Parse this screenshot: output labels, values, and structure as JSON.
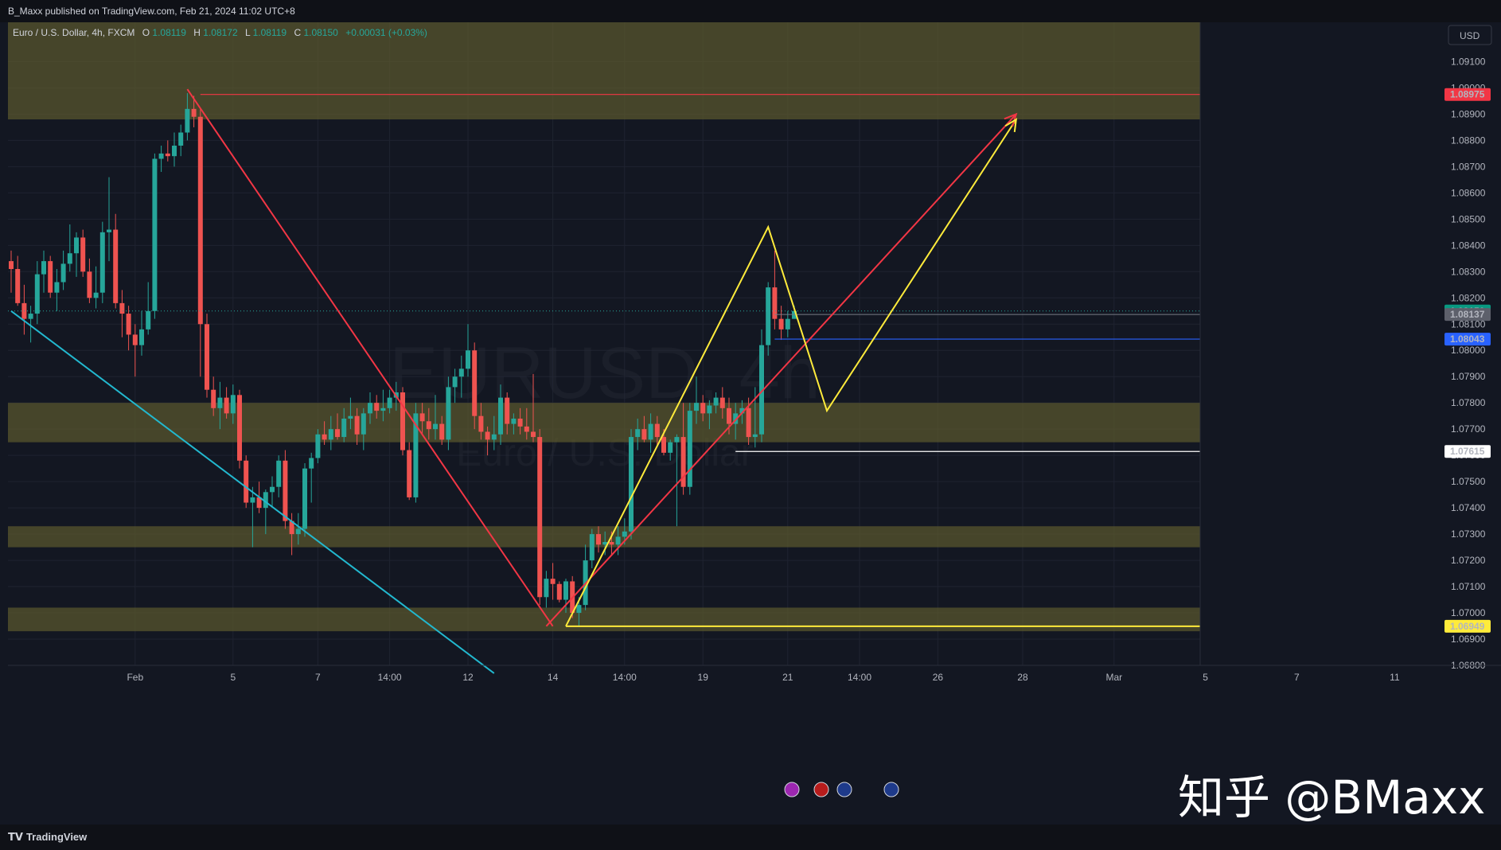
{
  "publisher": "B_Maxx published on TradingView.com, Feb 21, 2024 11:02 UTC+8",
  "brand": "TradingView",
  "watermark": "知乎 @BMaxx",
  "colors": {
    "background": "#131722",
    "zone_fill": "#5c5a2e",
    "bull": "#26a69a",
    "bear": "#ef5350",
    "red_line": "#f23645",
    "yellow_line": "#ffeb3b",
    "cyan_line": "#22b8cf",
    "blue_label": "#2962ff",
    "grid": "#1f2330"
  },
  "icons": [
    "lightning-icon",
    "us-flag-icon",
    "eu-flag-icon",
    "eu-flag-icon"
  ],
  "chart_data": {
    "type": "candlestick",
    "symbol": "EURUSD",
    "interval": "4h",
    "exchange": "FXCM",
    "legend": {
      "name": "Euro / U.S. Dollar, 4h, FXCM",
      "open_label": "O",
      "open": "1.08119",
      "high_label": "H",
      "high": "1.08172",
      "low_label": "L",
      "low": "1.08119",
      "close_label": "C",
      "close": "1.08150",
      "change": "+0.00031 (+0.03%)"
    },
    "background_watermark": {
      "symbol_line": "EURUSD, 4h",
      "name_line": "Euro / U.S. Dollar"
    },
    "currency": "USD",
    "y_range": [
      1.068,
      1.0925
    ],
    "y_ticks": [
      "1.09100",
      "1.09000",
      "1.08900",
      "1.08800",
      "1.08700",
      "1.08600",
      "1.08500",
      "1.08400",
      "1.08300",
      "1.08200",
      "1.08100",
      "1.08000",
      "1.07900",
      "1.07800",
      "1.07700",
      "1.07600",
      "1.07500",
      "1.07400",
      "1.07300",
      "1.07200",
      "1.07100",
      "1.07000",
      "1.06900",
      "1.06800"
    ],
    "x_ticks": [
      {
        "label": "Feb",
        "bar": 19
      },
      {
        "label": "5",
        "bar": 34
      },
      {
        "label": "7",
        "bar": 47
      },
      {
        "label": "14:00",
        "bar": 58
      },
      {
        "label": "12",
        "bar": 70
      },
      {
        "label": "14",
        "bar": 83
      },
      {
        "label": "14:00",
        "bar": 94
      },
      {
        "label": "19",
        "bar": 106
      },
      {
        "label": "21",
        "bar": 119
      },
      {
        "label": "14:00",
        "bar": 130
      },
      {
        "label": "26",
        "bar": 142
      },
      {
        "label": "28",
        "bar": 155
      },
      {
        "label": "Mar",
        "bar": 169
      },
      {
        "label": "5",
        "bar": 183
      },
      {
        "label": "7",
        "bar": 197
      },
      {
        "label": "11",
        "bar": 212
      }
    ],
    "price_labels": [
      {
        "value": "1.08975",
        "price": 1.08975,
        "color": "#f23645"
      },
      {
        "value": "1.08150",
        "price": 1.0815,
        "color": "#089981"
      },
      {
        "value": "1.08137",
        "price": 1.08137,
        "color": "#5d606b"
      },
      {
        "value": "1.08043",
        "price": 1.08043,
        "color": "#2962ff"
      },
      {
        "value": "1.07615",
        "price": 1.07615,
        "color": "#ffffff"
      },
      {
        "value": "1.06949",
        "price": 1.06949,
        "color": "#ffeb3b"
      }
    ],
    "zones": [
      {
        "top": 1.0925,
        "bottom": 1.0888
      },
      {
        "top": 1.078,
        "bottom": 1.0765
      },
      {
        "top": 1.0733,
        "bottom": 1.0725
      },
      {
        "top": 1.0702,
        "bottom": 1.0693
      }
    ],
    "horizontal_lines": [
      {
        "price": 1.08975,
        "from_bar": 29,
        "color": "#f23645"
      },
      {
        "price": 1.08043,
        "from_bar": 117,
        "color": "#2962ff"
      },
      {
        "price": 1.07615,
        "from_bar": 111,
        "color": "#ffffff"
      },
      {
        "price": 1.06949,
        "from_bar": 85,
        "color": "#ffeb3b"
      }
    ],
    "drawings": [
      {
        "color": "#22b8cf",
        "points": [
          [
            0,
            1.0815
          ],
          [
            74,
            1.0677
          ]
        ]
      },
      {
        "color": "#f23645",
        "points": [
          [
            27,
            1.08995
          ],
          [
            83,
            1.06949
          ]
        ]
      },
      {
        "color": "#f23645",
        "points": [
          [
            82,
            1.06949
          ],
          [
            154,
            1.089
          ]
        ]
      },
      {
        "color": "#ffeb3b",
        "points": [
          [
            85,
            1.06949
          ],
          [
            116,
            1.0847
          ],
          [
            125,
            1.0777
          ],
          [
            154,
            1.0888
          ]
        ]
      }
    ],
    "candles_ohlc": [
      [
        1.0834,
        1.0838,
        1.0822,
        1.0831
      ],
      [
        1.0831,
        1.0836,
        1.0817,
        1.0818
      ],
      [
        1.0818,
        1.0825,
        1.0806,
        1.0812
      ],
      [
        1.0812,
        1.0817,
        1.0803,
        1.0814
      ],
      [
        1.0814,
        1.0834,
        1.081,
        1.0829
      ],
      [
        1.0829,
        1.0838,
        1.0822,
        1.0834
      ],
      [
        1.0834,
        1.0836,
        1.082,
        1.0822
      ],
      [
        1.0822,
        1.0831,
        1.0815,
        1.0826
      ],
      [
        1.0826,
        1.0838,
        1.0823,
        1.0833
      ],
      [
        1.0833,
        1.0848,
        1.083,
        1.0837
      ],
      [
        1.0837,
        1.0845,
        1.0828,
        1.0843
      ],
      [
        1.0843,
        1.0846,
        1.0828,
        1.083
      ],
      [
        1.083,
        1.0835,
        1.0818,
        1.082
      ],
      [
        1.082,
        1.0832,
        1.0816,
        1.0822
      ],
      [
        1.0822,
        1.0849,
        1.0818,
        1.0845
      ],
      [
        1.0845,
        1.0866,
        1.0834,
        1.0846
      ],
      [
        1.0846,
        1.0852,
        1.0816,
        1.0818
      ],
      [
        1.0818,
        1.0823,
        1.0805,
        1.0814
      ],
      [
        1.0814,
        1.0817,
        1.08,
        1.0806
      ],
      [
        1.0806,
        1.081,
        1.079,
        1.0802
      ],
      [
        1.0802,
        1.0815,
        1.0798,
        1.0808
      ],
      [
        1.0808,
        1.0826,
        1.0806,
        1.0815
      ],
      [
        1.0815,
        1.0875,
        1.0812,
        1.0873
      ],
      [
        1.0873,
        1.0878,
        1.0868,
        1.0875
      ],
      [
        1.0875,
        1.088,
        1.0872,
        1.0874
      ],
      [
        1.0874,
        1.0883,
        1.087,
        1.0878
      ],
      [
        1.0878,
        1.0886,
        1.0874,
        1.0883
      ],
      [
        1.0883,
        1.0898,
        1.088,
        1.0892
      ],
      [
        1.0892,
        1.0897,
        1.0885,
        1.0889
      ],
      [
        1.0889,
        1.0892,
        1.079,
        1.081
      ],
      [
        1.081,
        1.0814,
        1.0782,
        1.0785
      ],
      [
        1.0785,
        1.079,
        1.0775,
        1.0778
      ],
      [
        1.0778,
        1.0788,
        1.077,
        1.0782
      ],
      [
        1.0782,
        1.0786,
        1.0774,
        1.0776
      ],
      [
        1.0776,
        1.0787,
        1.0772,
        1.0783
      ],
      [
        1.0783,
        1.0785,
        1.0755,
        1.0758
      ],
      [
        1.0758,
        1.076,
        1.074,
        1.0742
      ],
      [
        1.0742,
        1.0748,
        1.0725,
        1.0744
      ],
      [
        1.0744,
        1.075,
        1.0738,
        1.074
      ],
      [
        1.074,
        1.0747,
        1.073,
        1.0746
      ],
      [
        1.0746,
        1.0752,
        1.074,
        1.0748
      ],
      [
        1.0748,
        1.076,
        1.0744,
        1.0758
      ],
      [
        1.0758,
        1.0762,
        1.0732,
        1.0735
      ],
      [
        1.0735,
        1.0738,
        1.0722,
        1.073
      ],
      [
        1.073,
        1.0738,
        1.0726,
        1.0732
      ],
      [
        1.0732,
        1.0757,
        1.0729,
        1.0755
      ],
      [
        1.0755,
        1.0761,
        1.0742,
        1.0759
      ],
      [
        1.0759,
        1.077,
        1.0757,
        1.0768
      ],
      [
        1.0768,
        1.0773,
        1.0764,
        1.0766
      ],
      [
        1.0766,
        1.0775,
        1.0762,
        1.077
      ],
      [
        1.077,
        1.0776,
        1.0766,
        1.0767
      ],
      [
        1.0767,
        1.0778,
        1.0765,
        1.0774
      ],
      [
        1.0774,
        1.0782,
        1.077,
        1.0775
      ],
      [
        1.0775,
        1.0778,
        1.0764,
        1.0768
      ],
      [
        1.0768,
        1.0778,
        1.0762,
        1.0776
      ],
      [
        1.0776,
        1.0784,
        1.0772,
        1.078
      ],
      [
        1.078,
        1.0783,
        1.0774,
        1.0777
      ],
      [
        1.0777,
        1.0785,
        1.0773,
        1.0778
      ],
      [
        1.0778,
        1.0785,
        1.0776,
        1.0782
      ],
      [
        1.0782,
        1.0788,
        1.0777,
        1.0784
      ],
      [
        1.0784,
        1.0786,
        1.076,
        1.0762
      ],
      [
        1.0762,
        1.0765,
        1.0743,
        1.0744
      ],
      [
        1.0744,
        1.078,
        1.0742,
        1.0776
      ],
      [
        1.0776,
        1.078,
        1.0768,
        1.0773
      ],
      [
        1.0773,
        1.0778,
        1.0766,
        1.077
      ],
      [
        1.077,
        1.0783,
        1.0766,
        1.0772
      ],
      [
        1.0772,
        1.0775,
        1.0764,
        1.0766
      ],
      [
        1.0766,
        1.079,
        1.0762,
        1.0786
      ],
      [
        1.0786,
        1.0793,
        1.078,
        1.079
      ],
      [
        1.079,
        1.0798,
        1.0782,
        1.0793
      ],
      [
        1.0793,
        1.081,
        1.079,
        1.08
      ],
      [
        1.08,
        1.0803,
        1.077,
        1.0775
      ],
      [
        1.0775,
        1.078,
        1.0766,
        1.0769
      ],
      [
        1.0769,
        1.0771,
        1.076,
        1.0766
      ],
      [
        1.0766,
        1.0775,
        1.0762,
        1.0768
      ],
      [
        1.0768,
        1.0787,
        1.0764,
        1.0782
      ],
      [
        1.0782,
        1.0784,
        1.0768,
        1.0772
      ],
      [
        1.0772,
        1.0776,
        1.0768,
        1.0774
      ],
      [
        1.0774,
        1.0778,
        1.0768,
        1.0771
      ],
      [
        1.0771,
        1.0778,
        1.0766,
        1.0769
      ],
      [
        1.0769,
        1.0791,
        1.0765,
        1.0767
      ],
      [
        1.0767,
        1.077,
        1.0703,
        1.0706
      ],
      [
        1.0706,
        1.0716,
        1.0702,
        1.0713
      ],
      [
        1.0713,
        1.0719,
        1.0705,
        1.0711
      ],
      [
        1.0711,
        1.0712,
        1.0704,
        1.0705
      ],
      [
        1.0705,
        1.0713,
        1.07,
        1.0712
      ],
      [
        1.0712,
        1.0714,
        1.0698,
        1.07
      ],
      [
        1.07,
        1.0706,
        1.0695,
        1.0703
      ],
      [
        1.0703,
        1.0726,
        1.0701,
        1.072
      ],
      [
        1.072,
        1.0732,
        1.0717,
        1.073
      ],
      [
        1.073,
        1.0733,
        1.0723,
        1.0726
      ],
      [
        1.0726,
        1.0731,
        1.0722,
        1.0727
      ],
      [
        1.0727,
        1.0731,
        1.0722,
        1.0726
      ],
      [
        1.0726,
        1.0733,
        1.0722,
        1.0729
      ],
      [
        1.0729,
        1.0736,
        1.0726,
        1.0731
      ],
      [
        1.0731,
        1.077,
        1.0728,
        1.0767
      ],
      [
        1.0767,
        1.0774,
        1.0762,
        1.077
      ],
      [
        1.077,
        1.0775,
        1.0765,
        1.0766
      ],
      [
        1.0766,
        1.0776,
        1.0761,
        1.0772
      ],
      [
        1.0772,
        1.0775,
        1.0764,
        1.0767
      ],
      [
        1.0767,
        1.077,
        1.076,
        1.0761
      ],
      [
        1.0761,
        1.0766,
        1.0758,
        1.0765
      ],
      [
        1.0765,
        1.0768,
        1.0733,
        1.0767
      ],
      [
        1.0767,
        1.078,
        1.0745,
        1.0748
      ],
      [
        1.0748,
        1.078,
        1.0745,
        1.0777
      ],
      [
        1.0777,
        1.079,
        1.0772,
        1.078
      ],
      [
        1.078,
        1.0783,
        1.0773,
        1.0776
      ],
      [
        1.0776,
        1.0781,
        1.077,
        1.0779
      ],
      [
        1.0779,
        1.0784,
        1.0776,
        1.0782
      ],
      [
        1.0782,
        1.0786,
        1.0774,
        1.0778
      ],
      [
        1.0778,
        1.0782,
        1.0768,
        1.0772
      ],
      [
        1.0772,
        1.078,
        1.0766,
        1.0776
      ],
      [
        1.0776,
        1.0781,
        1.0772,
        1.0778
      ],
      [
        1.0778,
        1.0782,
        1.0764,
        1.0767
      ],
      [
        1.0767,
        1.0786,
        1.0763,
        1.0768
      ],
      [
        1.0768,
        1.0808,
        1.0765,
        1.0802
      ],
      [
        1.0802,
        1.0826,
        1.0798,
        1.0824
      ],
      [
        1.0824,
        1.0838,
        1.0808,
        1.0812
      ],
      [
        1.0812,
        1.0817,
        1.0804,
        1.0808
      ],
      [
        1.0808,
        1.0815,
        1.0805,
        1.0812
      ],
      [
        1.0812,
        1.0817,
        1.0812,
        1.0815
      ]
    ]
  }
}
